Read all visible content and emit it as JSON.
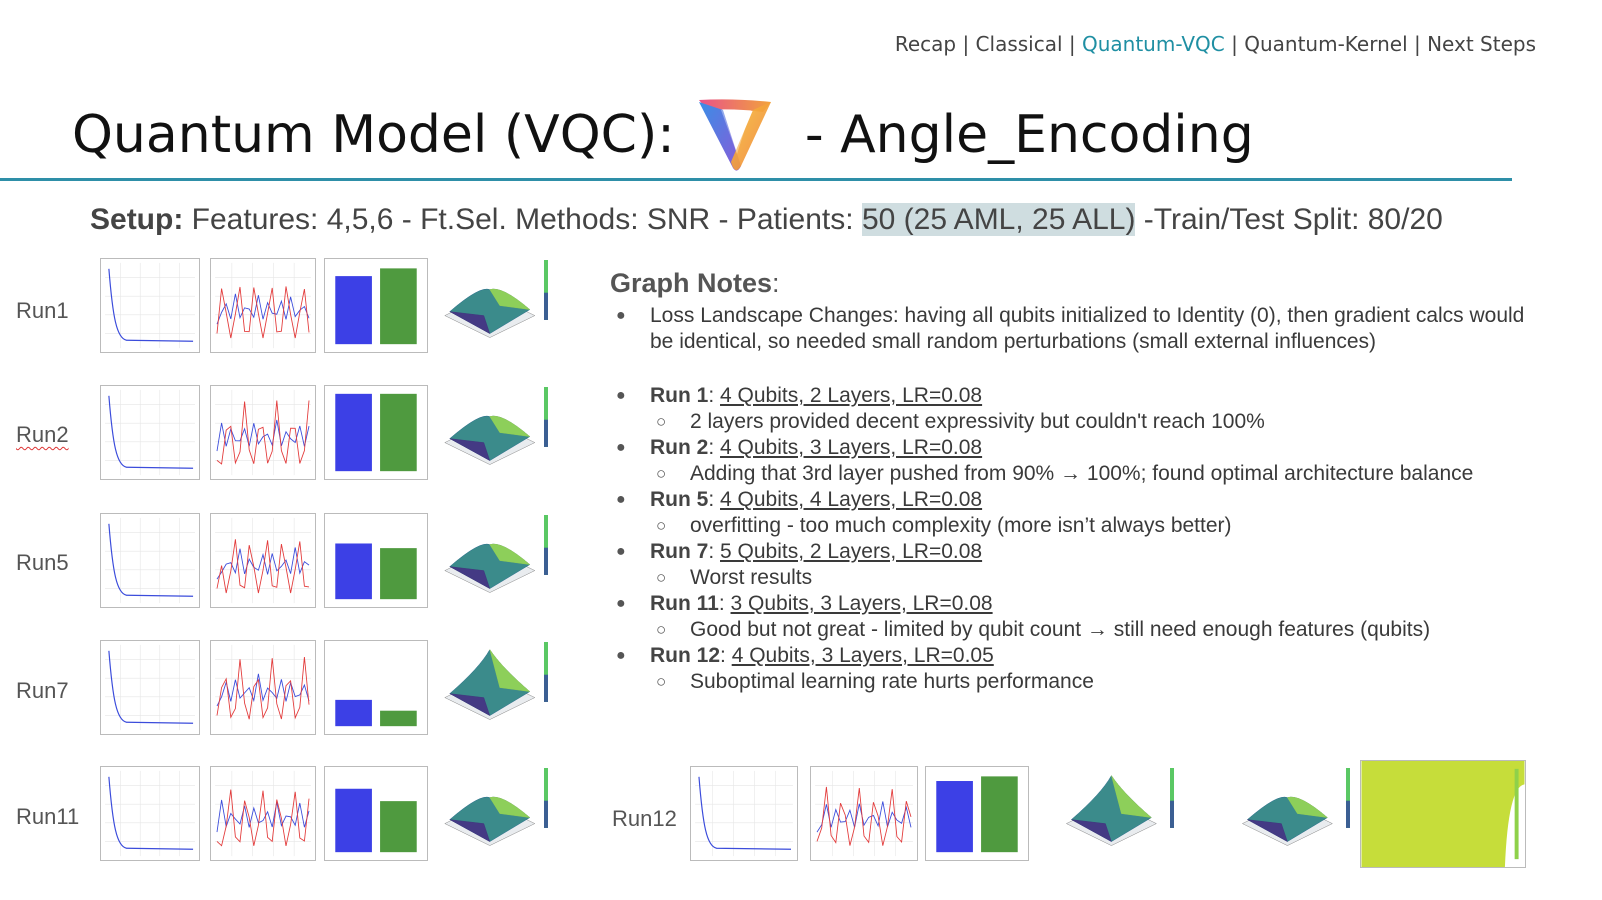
{
  "nav": {
    "items": [
      "Recap",
      "Classical",
      "Quantum-VQC",
      "Quantum-Kernel",
      "Next Steps"
    ],
    "active": "Quantum-VQC",
    "active_color": "#1f8fa3"
  },
  "title": {
    "prefix": "Quantum Model (VQC):",
    "suffix": "- Angle_Encoding",
    "logo_icon": "gradient-v-logo-icon"
  },
  "setup": {
    "label": "Setup:",
    "text_before": " Features: 4,5,6 - Ft.Sel. Methods: SNR - Patients: ",
    "highlight": "50 (25 AML, 25 ALL)",
    "text_after": " -Train/Test Split: 80/20"
  },
  "runs": [
    {
      "label": "Run1"
    },
    {
      "label": "Run2"
    },
    {
      "label": "Run5"
    },
    {
      "label": "Run7"
    },
    {
      "label": "Run11"
    },
    {
      "label": "Run12"
    }
  ],
  "notes": {
    "heading": "Graph Notes",
    "heading_colon": ":",
    "intro": "Loss Landscape Changes: having all qubits initialized to Identity (0), then gradient calcs would be identical, so needed small random perturbations (small external influences)",
    "items": [
      {
        "run": "Run 1",
        "config": "4 Qubits, 2 Layers, LR=0.08",
        "sub": "2 layers provided decent expressivity but couldn't reach 100%"
      },
      {
        "run": "Run 2",
        "config": "4 Qubits, 3 Layers, LR=0.08",
        "sub": "Adding that 3rd layer pushed from 90% → 100%; found optimal architecture balance"
      },
      {
        "run": "Run 5",
        "config": "4 Qubits, 4 Layers, LR=0.08",
        "sub": "overfitting - too much complexity (more isn’t always better)"
      },
      {
        "run": "Run 7",
        "config": "5 Qubits, 2 Layers, LR=0.08",
        "sub": "Worst results"
      },
      {
        "run": "Run 11",
        "config": "3 Qubits, 3 Layers, LR=0.08",
        "sub": "Good but not great - limited by qubit count → still need enough features (qubits)"
      },
      {
        "run": "Run 12",
        "config": "4 Qubits, 3 Layers, LR=0.05",
        "sub": "Suboptimal learning rate hurts performance"
      }
    ]
  },
  "colors": {
    "rule": "#2e8fa8",
    "loss_line": "#3b4cdb",
    "train_acc": "#3b4cdb",
    "val_acc": "#e33b3b",
    "bar_accuracy": "#3c40e6",
    "bar_auroc": "#4f9a3f"
  }
}
